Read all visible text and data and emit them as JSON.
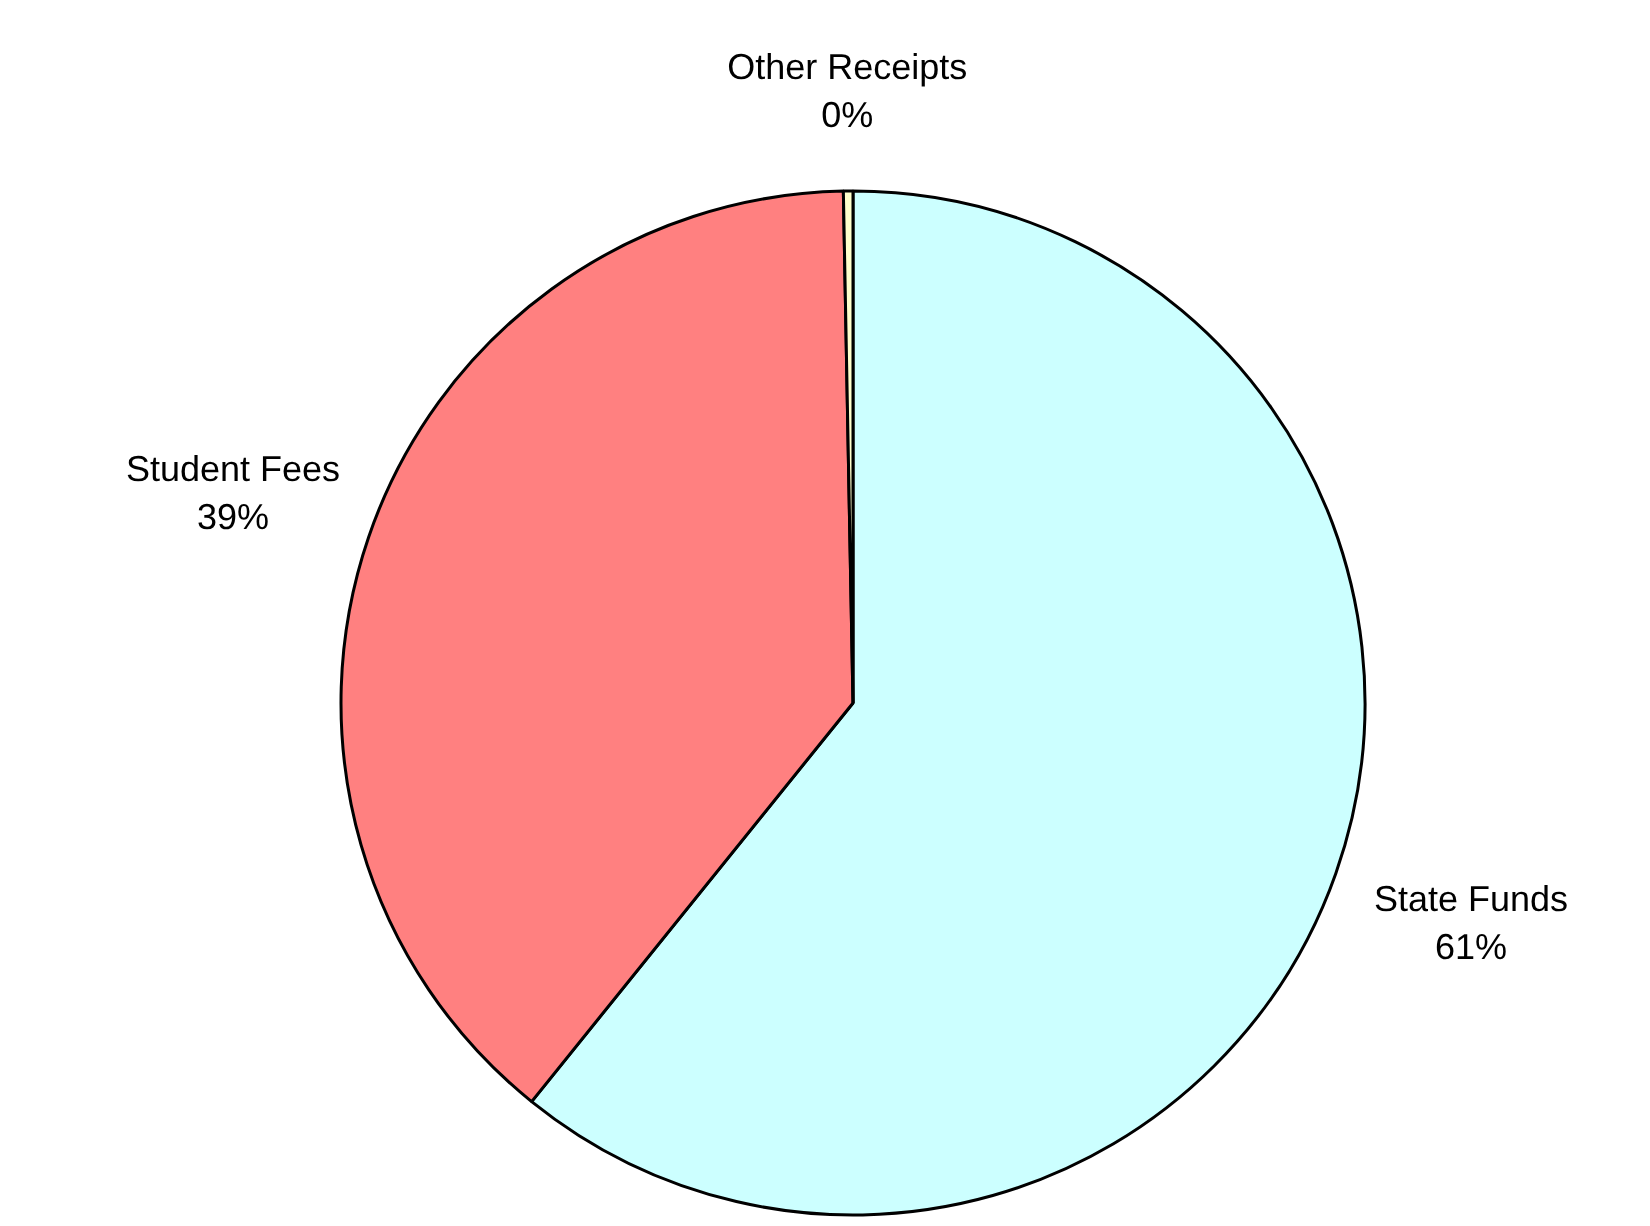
{
  "chart_data": {
    "type": "pie",
    "categories": [
      "State Funds",
      "Student Fees",
      "Other Receipts"
    ],
    "values": [
      60.8,
      38.9,
      0.3
    ],
    "value_labels": [
      "61%",
      "39%",
      "0%"
    ],
    "colors": [
      "#ccffff",
      "#ff8080",
      "#ffffcc"
    ]
  }
}
